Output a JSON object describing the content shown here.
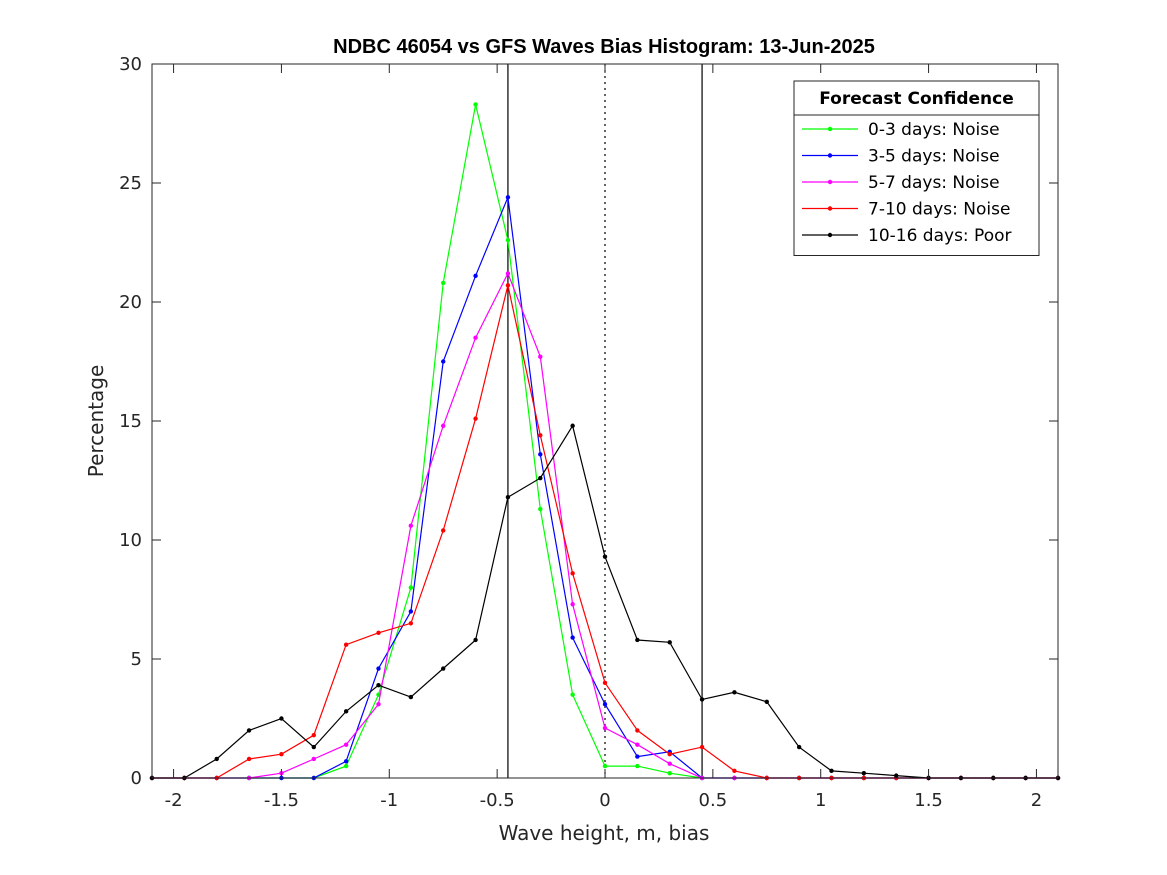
{
  "chart_data": {
    "type": "line",
    "title": "NDBC 46054 vs GFS Waves Bias Histogram: 13-Jun-2025",
    "xlabel": "Wave height, m, bias",
    "ylabel": "Percentage",
    "xlim": [
      -2.1,
      2.1
    ],
    "ylim": [
      0,
      30
    ],
    "xticks": [
      -2,
      -1.5,
      -1,
      -0.5,
      0,
      0.5,
      1,
      1.5,
      2
    ],
    "xtick_labels": [
      "-2",
      "-1.5",
      "-1",
      "-0.5",
      "0",
      "0.5",
      "1",
      "1.5",
      "2"
    ],
    "yticks": [
      0,
      5,
      10,
      15,
      20,
      25,
      30
    ],
    "ytick_labels": [
      "0",
      "5",
      "10",
      "15",
      "20",
      "25",
      "30"
    ],
    "grid": false,
    "legend": {
      "title": "Forecast Confidence",
      "placement": "top-right"
    },
    "reference_lines": [
      {
        "x": -0.45,
        "style": "solid",
        "color": "#000000"
      },
      {
        "x": 0,
        "style": "dotted",
        "color": "#000000"
      },
      {
        "x": 0.45,
        "style": "solid",
        "color": "#000000"
      }
    ],
    "x": [
      -2.1,
      -1.95,
      -1.8,
      -1.65,
      -1.5,
      -1.35,
      -1.2,
      -1.05,
      -0.9,
      -0.75,
      -0.6,
      -0.45,
      -0.3,
      -0.15,
      0,
      0.15,
      0.3,
      0.45,
      0.6,
      0.75,
      0.9,
      1.05,
      1.2,
      1.35,
      1.5,
      1.65,
      1.8,
      1.95,
      2.1
    ],
    "series": [
      {
        "name": "0-3 days: Noise",
        "color": "#00ff00",
        "values": [
          0,
          0,
          0,
          0,
          0,
          0,
          0.5,
          3.5,
          8.0,
          20.8,
          28.3,
          22.6,
          11.3,
          3.5,
          0.5,
          0.5,
          0.2,
          0,
          0,
          0,
          0,
          0,
          0,
          0,
          0,
          0,
          0,
          0,
          0
        ]
      },
      {
        "name": "3-5 days: Noise",
        "color": "#0000ff",
        "values": [
          0,
          0,
          0,
          0,
          0,
          0,
          0.7,
          4.6,
          7.0,
          17.5,
          21.1,
          24.4,
          13.6,
          5.9,
          3.1,
          0.9,
          1.1,
          0,
          0,
          0,
          0,
          0,
          0,
          0,
          0,
          0,
          0,
          0,
          0
        ]
      },
      {
        "name": "5-7 days: Noise",
        "color": "#ff00ff",
        "values": [
          0,
          0,
          0,
          0,
          0.2,
          0.8,
          1.4,
          3.1,
          10.6,
          14.8,
          18.5,
          21.2,
          17.7,
          7.3,
          2.1,
          1.4,
          0.6,
          0,
          0,
          0,
          0,
          0,
          0,
          0,
          0,
          0,
          0,
          0,
          0
        ]
      },
      {
        "name": "7-10 days: Noise",
        "color": "#ff0000",
        "values": [
          0,
          0,
          0,
          0.8,
          1.0,
          1.8,
          5.6,
          6.1,
          6.5,
          10.4,
          15.1,
          20.7,
          14.4,
          8.6,
          4.0,
          2.0,
          1.0,
          1.3,
          0.3,
          0,
          0,
          0,
          0,
          0,
          0,
          0,
          0,
          0,
          0
        ]
      },
      {
        "name": "10-16 days: Poor",
        "color": "#000000",
        "values": [
          0,
          0,
          0.8,
          2.0,
          2.5,
          1.3,
          2.8,
          3.9,
          3.4,
          4.6,
          5.8,
          11.8,
          12.6,
          14.8,
          9.3,
          5.8,
          5.7,
          3.3,
          3.6,
          3.2,
          1.3,
          0.3,
          0.2,
          0.1,
          0,
          0,
          0,
          0,
          0
        ]
      }
    ]
  }
}
